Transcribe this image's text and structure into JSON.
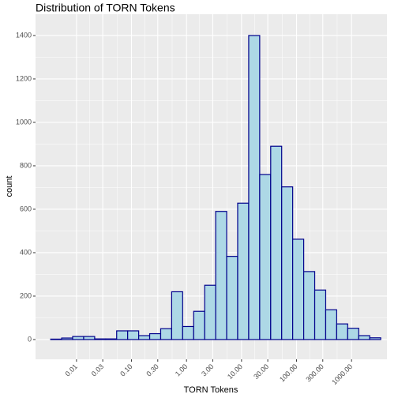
{
  "chart_data": {
    "type": "histogram",
    "title": "Distribution of TORN Tokens",
    "x_label": "TORN Tokens",
    "y_label": "count",
    "x_log_scale": true,
    "bins": [
      0.00339,
      0.00537,
      0.00851,
      0.0135,
      0.0214,
      0.0339,
      0.0537,
      0.0851,
      0.135,
      0.214,
      0.339,
      0.537,
      0.851,
      1.35,
      2.14,
      3.39,
      5.37,
      8.51,
      13.5,
      21.4,
      33.9,
      53.7,
      85.1,
      135,
      214,
      339,
      537,
      851,
      1350,
      2140,
      3390
    ],
    "counts": [
      2,
      7,
      14,
      14,
      3,
      3,
      40,
      40,
      18,
      27,
      50,
      220,
      60,
      130,
      250,
      590,
      383,
      628,
      1400,
      760,
      890,
      703,
      462,
      313,
      228,
      137,
      72,
      52,
      18,
      8
    ],
    "fill": "#ADD8E6",
    "stroke": "#00008B",
    "xlim": [
      0.0018,
      4400
    ],
    "xticks": [
      {
        "value": 0.01,
        "label": "0.01"
      },
      {
        "value": 0.03,
        "label": "0.03"
      },
      {
        "value": 0.1,
        "label": "0.10"
      },
      {
        "value": 0.3,
        "label": "0.30"
      },
      {
        "value": 1,
        "label": "1.00"
      },
      {
        "value": 3,
        "label": "3.00"
      },
      {
        "value": 10,
        "label": "10.00"
      },
      {
        "value": 30,
        "label": "30.00"
      },
      {
        "value": 100,
        "label": "100.00"
      },
      {
        "value": 300,
        "label": "300.00"
      },
      {
        "value": 1000,
        "label": "1000.00"
      }
    ],
    "ylim": [
      -91,
      1498
    ],
    "yticks": [
      0,
      200,
      400,
      600,
      800,
      1000,
      1200,
      1400
    ],
    "grid": true
  }
}
